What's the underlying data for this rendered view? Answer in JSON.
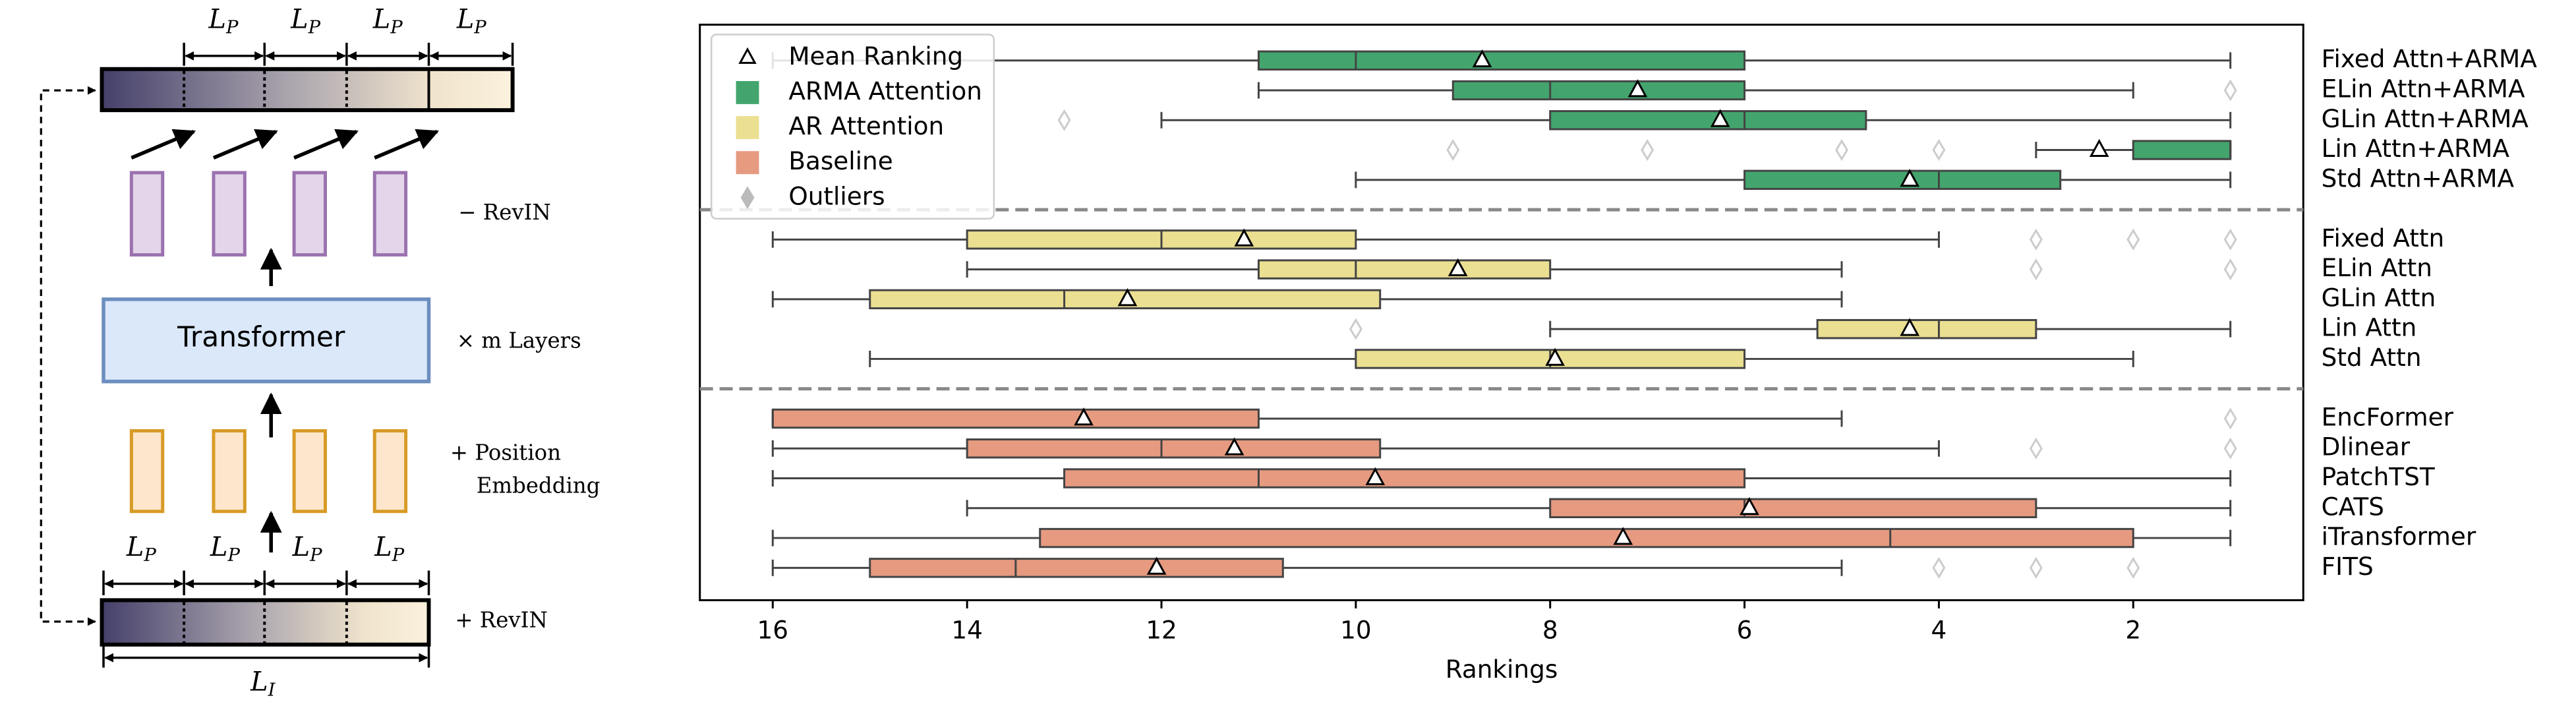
{
  "diagram": {
    "top_segments": [
      {
        "symbol": "L",
        "subscript": "P"
      },
      {
        "symbol": "L",
        "subscript": "P"
      },
      {
        "symbol": "L",
        "subscript": "P"
      },
      {
        "symbol": "L",
        "subscript": "P"
      }
    ],
    "bottom_segments": [
      {
        "symbol": "L",
        "subscript": "P"
      },
      {
        "symbol": "L",
        "subscript": "P"
      },
      {
        "symbol": "L",
        "subscript": "P"
      },
      {
        "symbol": "L",
        "subscript": "P"
      }
    ],
    "input_length": {
      "symbol": "L",
      "subscript": "I"
    },
    "minus_revin": "− RevIN",
    "transformer": "Transformer",
    "layers": "× m Layers",
    "position_embedding": [
      "+ Position",
      "Embedding"
    ],
    "plus_revin": "+ RevIN"
  },
  "chart_data": {
    "type": "box",
    "xlabel": "Rankings",
    "xlim": [
      16.75,
      0.25
    ],
    "xticks": [
      16,
      14,
      12,
      10,
      8,
      6,
      4,
      2
    ],
    "mean_label": "Mean Ranking",
    "outlier_label": "Outliers",
    "legend": "upper left",
    "groups": [
      {
        "name": "ARMA Attention",
        "color": "#43a56d",
        "boxes": [
          {
            "label": "Fixed Attn+ARMA",
            "whisker_low": 1,
            "box_low": 6,
            "median": 10,
            "box_high": 11,
            "whisker_high": 16,
            "mean": 8.7,
            "outliers": []
          },
          {
            "label": "ELin Attn+ARMA",
            "whisker_low": 2,
            "box_low": 6,
            "median": 8,
            "box_high": 9,
            "whisker_high": 11,
            "mean": 7.1,
            "outliers": [
              1
            ]
          },
          {
            "label": "GLin Attn+ARMA",
            "whisker_low": 1,
            "box_low": 4.75,
            "median": 6,
            "box_high": 8,
            "whisker_high": 12,
            "mean": 6.25,
            "outliers": [
              13
            ]
          },
          {
            "label": "Lin Attn+ARMA",
            "whisker_low": 1,
            "box_low": 1,
            "median": 1,
            "box_high": 2,
            "whisker_high": 3,
            "mean": 2.35,
            "outliers": [
              9,
              7,
              5,
              4
            ]
          },
          {
            "label": "Std Attn+ARMA",
            "whisker_low": 1,
            "box_low": 2.75,
            "median": 4,
            "box_high": 6,
            "whisker_high": 10,
            "mean": 4.3,
            "outliers": []
          }
        ]
      },
      {
        "name": "AR Attention",
        "color": "#ebdf92",
        "boxes": [
          {
            "label": "Fixed Attn",
            "whisker_low": 4,
            "box_low": 10,
            "median": 12,
            "box_high": 14,
            "whisker_high": 16,
            "mean": 11.15,
            "outliers": [
              3,
              2,
              1
            ]
          },
          {
            "label": "ELin Attn",
            "whisker_low": 5,
            "box_low": 8,
            "median": 10,
            "box_high": 11,
            "whisker_high": 14,
            "mean": 8.95,
            "outliers": [
              3,
              1
            ]
          },
          {
            "label": "GLin Attn",
            "whisker_low": 5,
            "box_low": 9.75,
            "median": 13,
            "box_high": 15,
            "whisker_high": 16,
            "mean": 12.35,
            "outliers": []
          },
          {
            "label": "Lin Attn",
            "whisker_low": 1,
            "box_low": 3,
            "median": 4,
            "box_high": 5.25,
            "whisker_high": 8,
            "mean": 4.3,
            "outliers": [
              10
            ]
          },
          {
            "label": "Std Attn",
            "whisker_low": 2,
            "box_low": 6,
            "median": 8,
            "box_high": 10,
            "whisker_high": 15,
            "mean": 7.95,
            "outliers": []
          }
        ]
      },
      {
        "name": "Baseline",
        "color": "#e69a80",
        "boxes": [
          {
            "label": "EncFormer",
            "whisker_low": 5,
            "box_low": 11,
            "median": 16,
            "box_high": 16,
            "whisker_high": 16,
            "mean": 12.8,
            "outliers": [
              1
            ]
          },
          {
            "label": "Dlinear",
            "whisker_low": 4,
            "box_low": 9.75,
            "median": 12,
            "box_high": 14,
            "whisker_high": 16,
            "mean": 11.25,
            "outliers": [
              3,
              1
            ]
          },
          {
            "label": "PatchTST",
            "whisker_low": 1,
            "box_low": 6,
            "median": 11,
            "box_high": 13,
            "whisker_high": 16,
            "mean": 9.8,
            "outliers": []
          },
          {
            "label": "CATS",
            "whisker_low": 1,
            "box_low": 3,
            "median": 6,
            "box_high": 8,
            "whisker_high": 14,
            "mean": 5.95,
            "outliers": []
          },
          {
            "label": "iTransformer",
            "whisker_low": 1,
            "box_low": 2,
            "median": 4.5,
            "box_high": 13.25,
            "whisker_high": 16,
            "mean": 7.25,
            "outliers": []
          },
          {
            "label": "FITS",
            "whisker_low": 5,
            "box_low": 10.75,
            "median": 13.5,
            "box_high": 15,
            "whisker_high": 16,
            "mean": 12.05,
            "outliers": [
              4,
              3,
              2
            ]
          }
        ]
      }
    ]
  }
}
